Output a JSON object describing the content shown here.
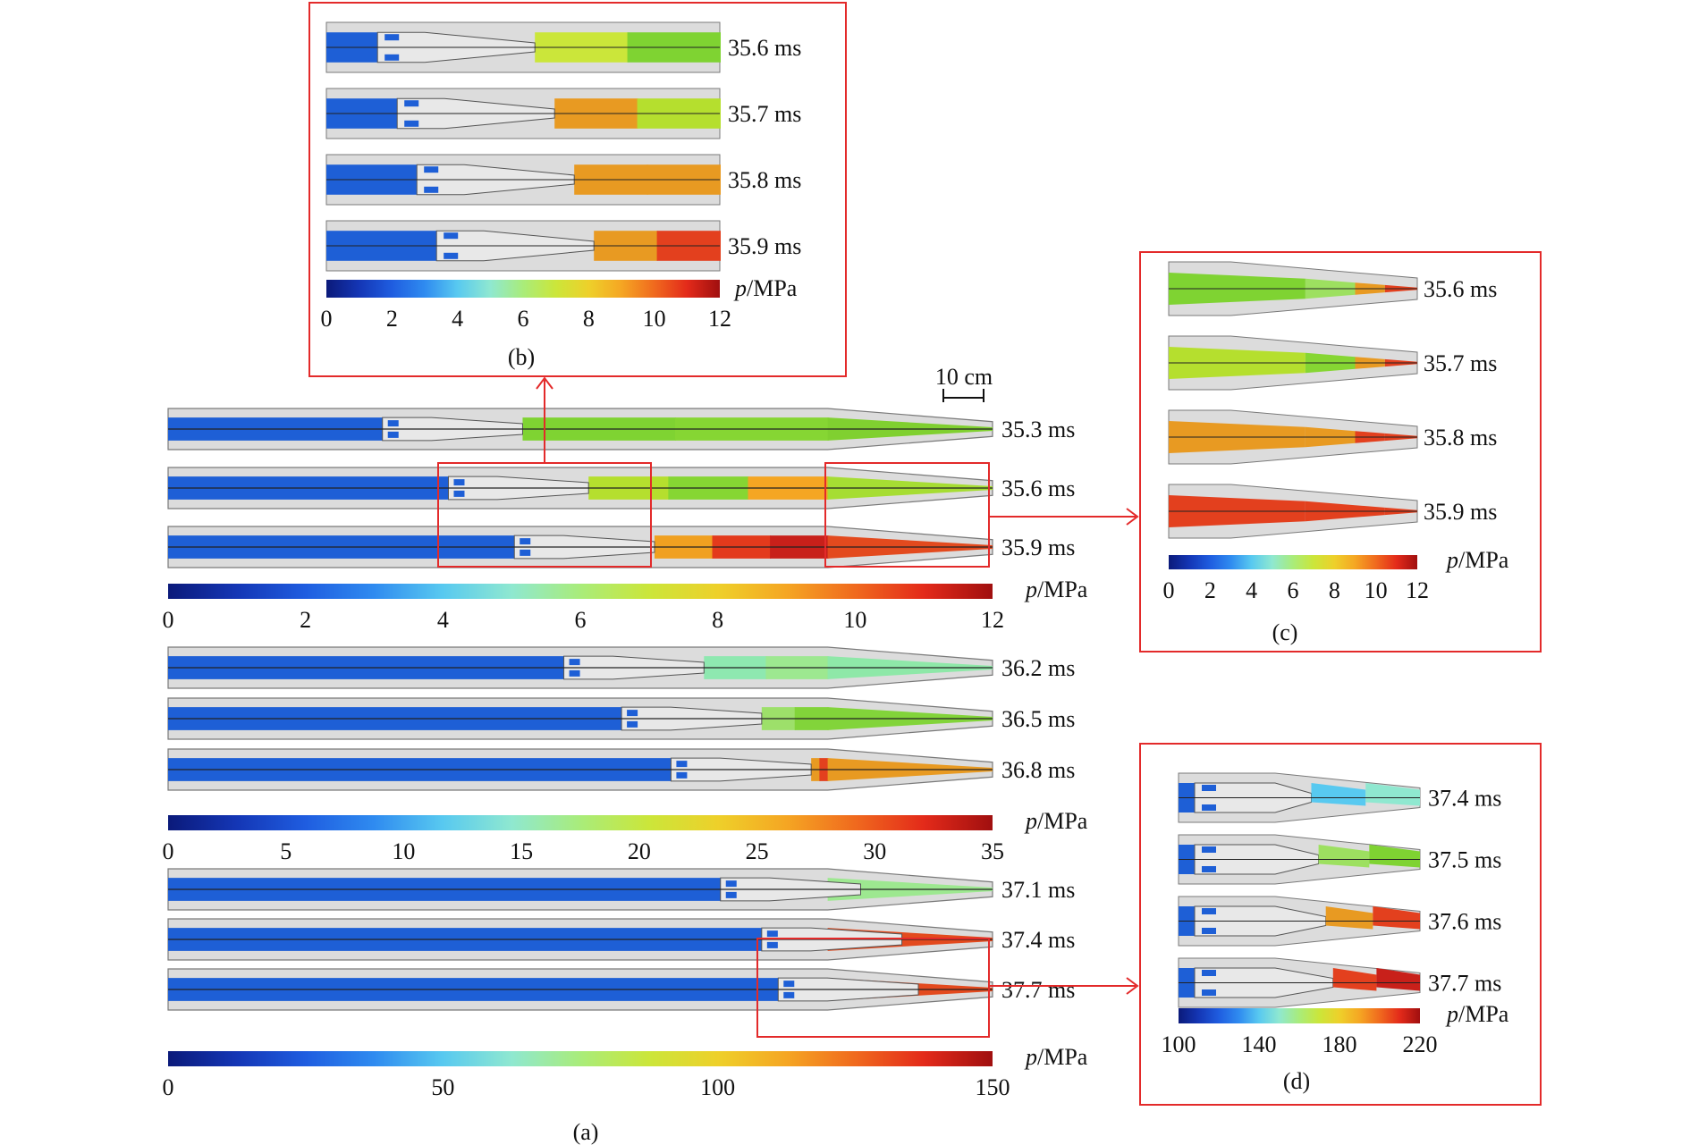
{
  "colors": {
    "barrel": "#dcdcdc",
    "barrel_edge": "#7a7a7a",
    "blue": "#1e5fd6",
    "highlight_box": "#e32a2a",
    "text": "#111111"
  },
  "colormap": [
    "#0b1a7a",
    "#1436b5",
    "#1f5de0",
    "#2f8bf0",
    "#58c9f0",
    "#8fe8d0",
    "#a9ec7a",
    "#cbe63a",
    "#eed02a",
    "#f5a623",
    "#f06a1e",
    "#e32a1a",
    "#a00f0f"
  ],
  "panel_a": {
    "caption": "(a)",
    "scale_bar_label": "10 cm",
    "groups": [
      {
        "rows": [
          {
            "label": "35.3 ms",
            "piston": 0.26,
            "tipfill": "#80d030",
            "fill": [
              "#7fd332",
              "#86d633"
            ]
          },
          {
            "label": "35.6 ms",
            "piston": 0.34,
            "tipfill": "#a6dd33",
            "fill": [
              "#b5df2e",
              "#86d633",
              "#f5a623"
            ]
          },
          {
            "label": "35.9 ms",
            "piston": 0.42,
            "tipfill": "#e34a1e",
            "fill": [
              "#f0a020",
              "#e33a1c",
              "#c8201a"
            ]
          }
        ],
        "cbar_unit": "p/MPa",
        "cbar_ticks": [
          "0",
          "2",
          "4",
          "6",
          "8",
          "10",
          "12"
        ]
      },
      {
        "rows": [
          {
            "label": "36.2 ms",
            "piston": 0.48,
            "tipfill": "#8ee8a8",
            "fill": [
              "#8ee8b0",
              "#9de890"
            ]
          },
          {
            "label": "36.5 ms",
            "piston": 0.55,
            "tipfill": "#82d43a",
            "fill": [
              "#9de06a",
              "#82d43a"
            ]
          },
          {
            "label": "36.8 ms",
            "piston": 0.61,
            "tipfill": "#e89a22",
            "fill": [
              "#e89a22",
              "#e3401e"
            ]
          }
        ],
        "cbar_unit": "p/MPa",
        "cbar_ticks": [
          "0",
          "5",
          "10",
          "15",
          "20",
          "25",
          "30",
          "35"
        ]
      },
      {
        "rows": [
          {
            "label": "37.1 ms",
            "piston": 0.67,
            "tipfill": "#9de890",
            "fill": [
              "#9de890",
              "#7fd332"
            ]
          },
          {
            "label": "37.4 ms",
            "piston": 0.72,
            "tipfill": "#e34a1e",
            "fill": [
              "#e34a1e",
              "#c8201a"
            ]
          },
          {
            "label": "37.7 ms",
            "piston": 0.74,
            "tipfill": "#e34a1e",
            "fill": [
              "#e34a1e",
              "#c8201a"
            ]
          }
        ],
        "cbar_unit": "p/MPa",
        "cbar_ticks": [
          "0",
          "50",
          "100",
          "150"
        ]
      }
    ]
  },
  "panel_b": {
    "caption": "(b)",
    "rows": [
      {
        "label": "35.6 ms",
        "fill": [
          "#cbe63a",
          "#7fd332"
        ]
      },
      {
        "label": "35.7 ms",
        "fill": [
          "#e89a22",
          "#b5df2e"
        ]
      },
      {
        "label": "35.8 ms",
        "fill": [
          "#e89a22",
          "#e89a22"
        ]
      },
      {
        "label": "35.9 ms",
        "fill": [
          "#e89a22",
          "#e3401e"
        ]
      }
    ],
    "cbar_unit": "p/MPa",
    "cbar_ticks": [
      "0",
      "2",
      "4",
      "6",
      "8",
      "10",
      "12"
    ]
  },
  "panel_c": {
    "caption": "(c)",
    "rows": [
      {
        "label": "35.6 ms",
        "fill": [
          "#7fd332",
          "#9de060",
          "#e89a22",
          "#e3401e"
        ]
      },
      {
        "label": "35.7 ms",
        "fill": [
          "#b5df2e",
          "#86d633",
          "#e89a22",
          "#e3401e"
        ]
      },
      {
        "label": "35.8 ms",
        "fill": [
          "#e89a22",
          "#e89a22",
          "#e3401e",
          "#e3401e"
        ]
      },
      {
        "label": "35.9 ms",
        "fill": [
          "#e3401e",
          "#e3401e",
          "#e3401e",
          "#e3401e"
        ]
      }
    ],
    "cbar_unit": "p/MPa",
    "cbar_ticks": [
      "0",
      "2",
      "4",
      "6",
      "8",
      "10",
      "12"
    ]
  },
  "panel_d": {
    "caption": "(d)",
    "rows": [
      {
        "label": "37.4 ms",
        "fill": [
          "#58c9f0",
          "#8fe8d0"
        ]
      },
      {
        "label": "37.5 ms",
        "fill": [
          "#9de060",
          "#7fd332"
        ]
      },
      {
        "label": "37.6 ms",
        "fill": [
          "#e89a22",
          "#e3401e"
        ]
      },
      {
        "label": "37.7 ms",
        "fill": [
          "#e3401e",
          "#c8201a"
        ]
      }
    ],
    "cbar_unit": "p/MPa",
    "cbar_ticks": [
      "100",
      "140",
      "180",
      "220"
    ]
  }
}
